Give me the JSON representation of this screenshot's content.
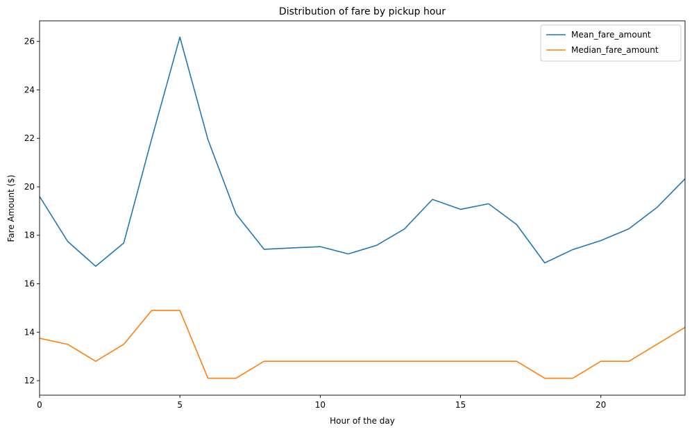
{
  "chart_data": {
    "type": "line",
    "title": "Distribution of fare by pickup hour",
    "xlabel": "Hour of the day",
    "ylabel": "Fare Amount ($)",
    "xlim": [
      0,
      23
    ],
    "ylim": [
      11.4,
      26.85
    ],
    "xticks": [
      0,
      5,
      10,
      15,
      20
    ],
    "yticks": [
      12,
      14,
      16,
      18,
      20,
      22,
      24,
      26
    ],
    "grid": false,
    "legend_position": "top-right",
    "x": [
      0,
      1,
      2,
      3,
      4,
      5,
      6,
      7,
      8,
      9,
      10,
      11,
      12,
      13,
      14,
      15,
      16,
      17,
      18,
      19,
      20,
      21,
      22,
      23
    ],
    "series": [
      {
        "name": "Mean_fare_amount",
        "color": "#1f77b4",
        "values": [
          19.6,
          17.75,
          16.72,
          17.68,
          22.0,
          26.18,
          21.95,
          18.88,
          17.42,
          17.48,
          17.53,
          17.23,
          17.58,
          18.26,
          19.48,
          19.07,
          19.3,
          18.44,
          16.86,
          17.41,
          17.78,
          18.27,
          19.15,
          20.33
        ]
      },
      {
        "name": "Median_fare_amount",
        "color": "#ff7f0e",
        "values": [
          13.75,
          13.5,
          12.8,
          13.5,
          14.9,
          14.9,
          12.1,
          12.1,
          12.8,
          12.8,
          12.8,
          12.8,
          12.8,
          12.8,
          12.8,
          12.8,
          12.8,
          12.8,
          12.1,
          12.1,
          12.8,
          12.8,
          13.5,
          14.2
        ]
      }
    ]
  }
}
